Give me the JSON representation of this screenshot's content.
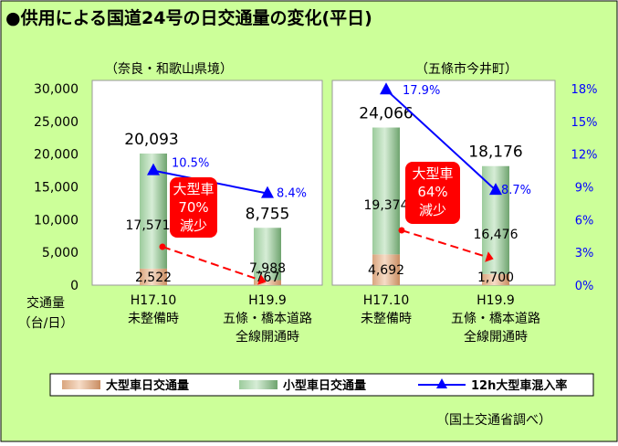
{
  "title": "●供用による国道24号の日交通量の変化(平日)",
  "source": "（国土交通省調べ）",
  "left_axis": {
    "ticks": [
      "30,000",
      "25,000",
      "20,000",
      "15,000",
      "10,000",
      "5,000",
      "0"
    ],
    "label_line1": "交通量",
    "label_line2": "（台/日）"
  },
  "right_axis": {
    "ticks": [
      "18%",
      "15%",
      "12%",
      "9%",
      "6%",
      "3%",
      "0%"
    ]
  },
  "legend": {
    "large": "大型車日交通量",
    "small": "小型車日交通量",
    "rate": "12h大型車混入率"
  },
  "colors": {
    "background": "#CCFF99",
    "plot_bg": "#FFFFFF",
    "small_bar": "#8DBF8D",
    "large_bar": "#E3B996",
    "rate_line": "#0000FF",
    "callout": "#FF0000",
    "arrow": "#FF0000"
  },
  "chart_data": [
    {
      "type": "bar",
      "subtitle": "（奈良・和歌山県境）",
      "categories": [
        [
          "H17.10",
          "未整備時"
        ],
        [
          "H19.9",
          "五條・橋本道路",
          "全線開通時"
        ]
      ],
      "stacked": true,
      "series": [
        {
          "name": "大型車日交通量",
          "values": [
            2522,
            767
          ],
          "labels": [
            "2,522",
            "767"
          ]
        },
        {
          "name": "小型車日交通量",
          "values": [
            17571,
            7988
          ],
          "labels": [
            "17,571",
            "7,988"
          ]
        }
      ],
      "totals": [
        20093,
        8755
      ],
      "total_labels": [
        "20,093",
        "8,755"
      ],
      "rate": {
        "name": "12h大型車混入率",
        "values": [
          10.5,
          8.4
        ],
        "labels": [
          "10.5%",
          "8.4%"
        ]
      },
      "callout": [
        "大型車",
        "70%",
        "減少"
      ],
      "ylim": [
        0,
        30000
      ],
      "y2lim": [
        0,
        18
      ]
    },
    {
      "type": "bar",
      "subtitle": "（五條市今井町）",
      "categories": [
        [
          "H17.10",
          "未整備時"
        ],
        [
          "H19.9",
          "五條・橋本道路",
          "全線開通時"
        ]
      ],
      "stacked": true,
      "series": [
        {
          "name": "大型車日交通量",
          "values": [
            4692,
            1700
          ],
          "labels": [
            "4,692",
            "1,700"
          ]
        },
        {
          "name": "小型車日交通量",
          "values": [
            19374,
            16476
          ],
          "labels": [
            "19,374",
            "16,476"
          ]
        }
      ],
      "totals": [
        24066,
        18176
      ],
      "total_labels": [
        "24,066",
        "18,176"
      ],
      "rate": {
        "name": "12h大型車混入率",
        "values": [
          17.9,
          8.7
        ],
        "labels": [
          "17.9%",
          "8.7%"
        ]
      },
      "callout": [
        "大型車",
        "64%",
        "減少"
      ],
      "ylim": [
        0,
        30000
      ],
      "y2lim": [
        0,
        18
      ]
    }
  ]
}
